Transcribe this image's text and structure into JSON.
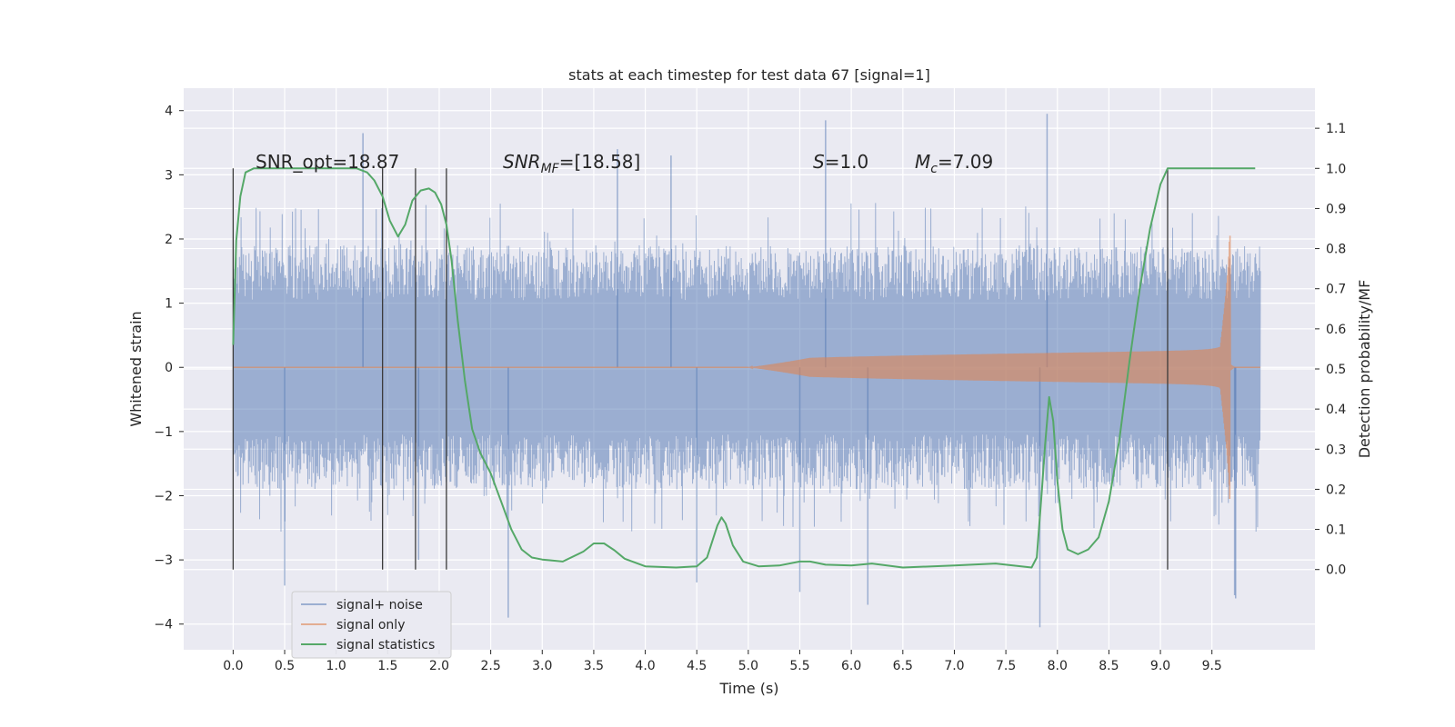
{
  "chart_data": {
    "type": "line",
    "title": "stats at each timestep for test data 67 [signal=1]",
    "xlabel": "Time (s)",
    "ylabel": "Whitened strain",
    "y2label": "Detection probability/MF",
    "xlim": [
      -0.48,
      10.5
    ],
    "ylim": [
      -4.4,
      4.35
    ],
    "y2lim": [
      -0.2,
      1.2
    ],
    "xticks": [
      0.0,
      0.5,
      1.0,
      1.5,
      2.0,
      2.5,
      3.0,
      3.5,
      4.0,
      4.5,
      5.0,
      5.5,
      6.0,
      6.5,
      7.0,
      7.5,
      8.0,
      8.5,
      9.0,
      9.5
    ],
    "xtick_labels": [
      "0.0",
      "0.5",
      "1.0",
      "1.5",
      "2.0",
      "2.5",
      "3.0",
      "3.5",
      "4.0",
      "4.5",
      "5.0",
      "5.5",
      "6.0",
      "6.5",
      "7.0",
      "7.5",
      "8.0",
      "8.5",
      "9.0",
      "9.5"
    ],
    "yticks": [
      -4,
      -3,
      -2,
      -1,
      0,
      1,
      2,
      3,
      4
    ],
    "ytick_labels": [
      "−4",
      "−3",
      "−2",
      "−1",
      "0",
      "1",
      "2",
      "3",
      "4"
    ],
    "y2ticks": [
      0.0,
      0.1,
      0.2,
      0.3,
      0.4,
      0.5,
      0.6,
      0.7,
      0.8,
      0.9,
      1.0,
      1.1
    ],
    "y2tick_labels": [
      "0.0",
      "0.1",
      "0.2",
      "0.3",
      "0.4",
      "0.5",
      "0.6",
      "0.7",
      "0.8",
      "0.9",
      "1.0",
      "1.1"
    ],
    "grid": true,
    "legend_position": "lower-left",
    "annotations": {
      "snr_opt": "SNR_opt=18.87",
      "snr_mf_main": "SNR",
      "snr_mf_sub": "MF",
      "snr_mf_rest": "=[18.58]",
      "s_main": "S",
      "s_rest": "=1.0",
      "mc_main": "M",
      "mc_sub": "c",
      "mc_rest": "=7.09"
    },
    "vertical_lines_x": [
      0.0,
      1.45,
      1.77,
      2.07,
      9.07
    ],
    "vertical_lines_yrange": [
      -3.15,
      3.1
    ],
    "noise": {
      "t_end": 9.97,
      "envelope": 1.9,
      "spikes": [
        {
          "x": 0.5,
          "y": -3.4
        },
        {
          "x": 1.26,
          "y": 3.65
        },
        {
          "x": 2.67,
          "y": -3.9
        },
        {
          "x": 4.5,
          "y": -3.35
        },
        {
          "x": 5.5,
          "y": -3.5
        },
        {
          "x": 5.75,
          "y": 3.85
        },
        {
          "x": 6.16,
          "y": -3.7
        },
        {
          "x": 7.9,
          "y": 3.95
        },
        {
          "x": 7.83,
          "y": -4.05
        },
        {
          "x": 9.73,
          "y": -3.6
        },
        {
          "x": 9.72,
          "y": -3.55
        },
        {
          "x": 3.73,
          "y": 3.4
        },
        {
          "x": 1.8,
          "y": -3.0
        },
        {
          "x": 4.25,
          "y": 3.3
        }
      ]
    },
    "signal": {
      "t_start": 5.0,
      "t_merge": 9.68,
      "peak_amplitude": 2.05
    },
    "series": [
      {
        "name": "signal+ noise",
        "color": "#4c72b0",
        "axis": "left"
      },
      {
        "name": "signal only",
        "color": "#dd8452",
        "axis": "left"
      },
      {
        "name": "signal statistics",
        "color": "#55a868",
        "axis": "right",
        "x": [
          0.0,
          0.03,
          0.07,
          0.12,
          0.2,
          0.3,
          0.5,
          0.8,
          1.0,
          1.2,
          1.3,
          1.37,
          1.45,
          1.52,
          1.6,
          1.67,
          1.74,
          1.82,
          1.9,
          1.96,
          2.02,
          2.07,
          2.12,
          2.18,
          2.25,
          2.32,
          2.4,
          2.5,
          2.6,
          2.7,
          2.8,
          2.9,
          3.0,
          3.2,
          3.4,
          3.5,
          3.6,
          3.7,
          3.8,
          4.0,
          4.3,
          4.5,
          4.6,
          4.65,
          4.7,
          4.74,
          4.78,
          4.85,
          4.95,
          5.1,
          5.3,
          5.5,
          5.6,
          5.75,
          6.0,
          6.2,
          6.5,
          7.0,
          7.4,
          7.75,
          7.8,
          7.85,
          7.88,
          7.92,
          7.96,
          8.0,
          8.05,
          8.1,
          8.2,
          8.3,
          8.4,
          8.5,
          8.6,
          8.7,
          8.8,
          8.9,
          9.0,
          9.07,
          9.15,
          9.25,
          9.35,
          9.5,
          9.7,
          9.92
        ],
        "values": [
          0.56,
          0.82,
          0.93,
          0.99,
          1.0,
          1.0,
          1.0,
          1.0,
          1.0,
          1.0,
          0.99,
          0.97,
          0.93,
          0.87,
          0.83,
          0.86,
          0.92,
          0.945,
          0.95,
          0.94,
          0.91,
          0.86,
          0.77,
          0.62,
          0.47,
          0.35,
          0.29,
          0.24,
          0.17,
          0.1,
          0.05,
          0.03,
          0.025,
          0.02,
          0.045,
          0.065,
          0.065,
          0.048,
          0.027,
          0.008,
          0.005,
          0.008,
          0.03,
          0.07,
          0.11,
          0.13,
          0.115,
          0.06,
          0.02,
          0.008,
          0.01,
          0.02,
          0.02,
          0.012,
          0.01,
          0.015,
          0.005,
          0.01,
          0.015,
          0.005,
          0.03,
          0.2,
          0.31,
          0.43,
          0.37,
          0.22,
          0.1,
          0.05,
          0.038,
          0.05,
          0.08,
          0.17,
          0.32,
          0.52,
          0.7,
          0.85,
          0.96,
          1.0,
          1.0,
          1.0,
          1.0,
          1.0,
          1.0,
          1.0
        ]
      }
    ]
  }
}
